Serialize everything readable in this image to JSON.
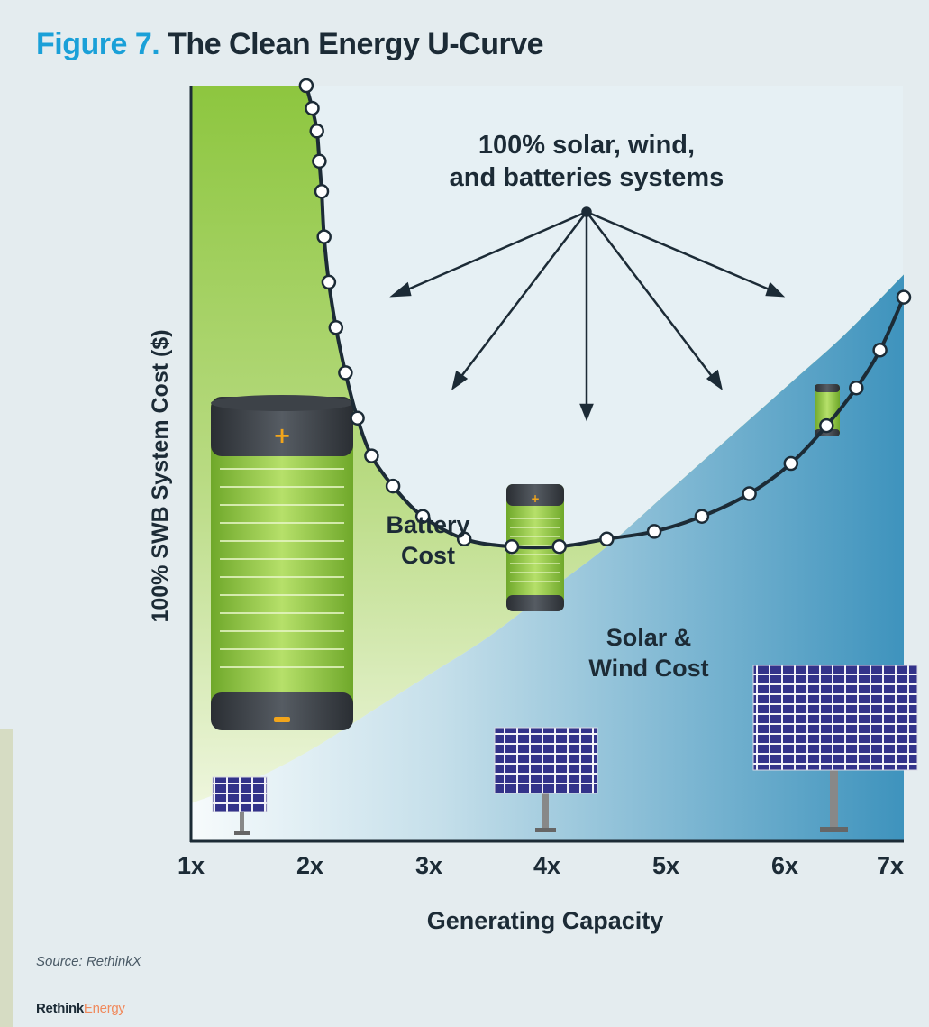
{
  "figure": {
    "number": "Figure 7.",
    "title": "The Clean Energy U-Curve"
  },
  "source": "Source: RethinkX",
  "logo": {
    "part_a": "Rethink",
    "part_b": "Energy"
  },
  "colors": {
    "title_accent": "#1aa0d8",
    "battery_fill": "#8dc63f",
    "solar_wind_fill": "#4a9bc2",
    "curve": "#1c2b36"
  },
  "chart_data": {
    "type": "area",
    "title": "The Clean Energy U-Curve",
    "xlabel": "Generating Capacity",
    "ylabel": "100% SWB System Cost ($)",
    "x_ticks": [
      "1x",
      "2x",
      "3x",
      "4x",
      "5x",
      "6x",
      "7x"
    ],
    "xlim": [
      1,
      7
    ],
    "ylim": [
      0,
      100
    ],
    "y_ticks_shown": false,
    "series": [
      {
        "name": "Solar & Wind Cost",
        "x": [
          1,
          1.5,
          2,
          2.5,
          3,
          3.5,
          4,
          4.5,
          5,
          5.5,
          6,
          6.5,
          7
        ],
        "values": [
          5,
          8,
          12,
          17,
          22,
          27,
          33,
          39,
          46,
          53,
          60,
          67,
          75
        ]
      },
      {
        "name": "Battery Cost",
        "x": [
          1,
          1.5,
          2,
          2.5,
          3,
          3.5,
          4,
          4.5,
          5,
          5.5,
          6,
          6.5,
          7
        ],
        "values": [
          95,
          82,
          70,
          38,
          28,
          23,
          19,
          16,
          13,
          11,
          10,
          9,
          9
        ]
      }
    ],
    "total_curve": {
      "x": [
        1.97,
        2.02,
        2.06,
        2.08,
        2.1,
        2.12,
        2.16,
        2.22,
        2.3,
        2.4,
        2.52,
        2.7,
        2.95,
        3.3,
        3.7,
        4.1,
        4.5,
        4.9,
        5.3,
        5.7,
        6.05,
        6.35,
        6.6,
        6.8,
        7.0
      ],
      "values": [
        100,
        97,
        94,
        90,
        86,
        80,
        74,
        68,
        62,
        56,
        51,
        47,
        43,
        40,
        39,
        39,
        40,
        41,
        43,
        46,
        50,
        55,
        60,
        65,
        72
      ]
    },
    "annotations": [
      {
        "text_line1": "100% solar, wind,",
        "text_line2": "and batteries systems",
        "kind": "arrows-to-curve"
      },
      {
        "text_line1": "Battery",
        "text_line2": "Cost",
        "kind": "area-label"
      },
      {
        "text_line1": "Solar &",
        "text_line2": "Wind Cost",
        "kind": "area-label"
      }
    ],
    "grid": false,
    "legend": "none"
  }
}
